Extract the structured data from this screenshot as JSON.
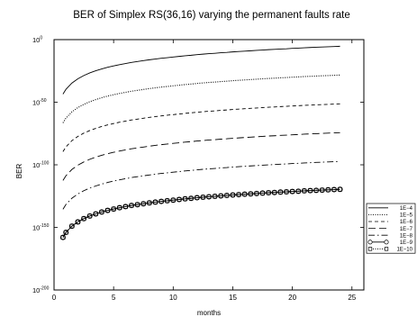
{
  "chart_data": {
    "type": "line",
    "title": "BER of Simplex RS(36,16) varying the permanent faults rate",
    "xlabel": "months",
    "ylabel": "BER",
    "xlim": [
      0,
      26
    ],
    "ylim_log10": [
      -200,
      0
    ],
    "yscale": "log",
    "x_ticks": [
      0,
      5,
      10,
      15,
      20,
      25
    ],
    "y_ticks": [
      {
        "base": "10",
        "exp": "-200",
        "log10": -200
      },
      {
        "base": "10",
        "exp": "-150",
        "log10": -150
      },
      {
        "base": "10",
        "exp": "-100",
        "log10": -100
      },
      {
        "base": "10",
        "exp": "-50",
        "log10": -50
      },
      {
        "base": "10",
        "exp": "0",
        "log10": 0
      }
    ],
    "grid": false,
    "legend_position": "right",
    "x": [
      0.75,
      1,
      1.5,
      2,
      2.5,
      3,
      3.5,
      4,
      4.5,
      5,
      5.5,
      6,
      6.5,
      7,
      7.5,
      8,
      8.5,
      9,
      9.5,
      10,
      10.5,
      11,
      11.5,
      12,
      12.5,
      13,
      13.5,
      14,
      14.5,
      15,
      15.5,
      16,
      16.5,
      17,
      17.5,
      18,
      18.5,
      19,
      19.5,
      20,
      20.5,
      21,
      21.5,
      22,
      22.5,
      23,
      23.5,
      24
    ],
    "series": [
      {
        "name": "1E−4",
        "dash": "solid",
        "marker": "none",
        "log10_values": [
          -43.5,
          -39.7,
          -34.7,
          -31.3,
          -28.7,
          -26.6,
          -24.9,
          -23.4,
          -22.1,
          -21.0,
          -20.0,
          -19.1,
          -18.2,
          -17.5,
          -16.8,
          -16.1,
          -15.5,
          -14.9,
          -14.4,
          -13.9,
          -13.4,
          -12.9,
          -12.5,
          -12.0,
          -11.6,
          -11.2,
          -10.9,
          -10.5,
          -10.2,
          -9.8,
          -9.5,
          -9.2,
          -8.9,
          -8.6,
          -8.3,
          -8.0,
          -7.8,
          -7.5,
          -7.3,
          -7.0,
          -6.8,
          -6.5,
          -6.3,
          -6.1,
          -5.9,
          -5.7,
          -5.5,
          -5.3
        ]
      },
      {
        "name": "1E−5",
        "dash": "dotted",
        "marker": "none",
        "log10_values": [
          -66.5,
          -62.7,
          -57.7,
          -54.3,
          -51.7,
          -49.6,
          -47.9,
          -46.4,
          -45.1,
          -44.0,
          -43.0,
          -42.1,
          -41.2,
          -40.5,
          -39.8,
          -39.1,
          -38.5,
          -37.9,
          -37.4,
          -36.9,
          -36.4,
          -35.9,
          -35.5,
          -35.0,
          -34.6,
          -34.2,
          -33.9,
          -33.5,
          -33.2,
          -32.8,
          -32.5,
          -32.2,
          -31.9,
          -31.6,
          -31.3,
          -31.0,
          -30.8,
          -30.5,
          -30.3,
          -30.0,
          -29.8,
          -29.5,
          -29.3,
          -29.1,
          -28.9,
          -28.7,
          -28.5,
          -28.3
        ]
      },
      {
        "name": "1E−6",
        "dash": "short-dash",
        "marker": "none",
        "log10_values": [
          -89.5,
          -85.7,
          -80.7,
          -77.3,
          -74.7,
          -72.6,
          -70.9,
          -69.4,
          -68.1,
          -67.0,
          -66.0,
          -65.1,
          -64.2,
          -63.5,
          -62.8,
          -62.1,
          -61.5,
          -60.9,
          -60.4,
          -59.9,
          -59.4,
          -58.9,
          -58.5,
          -58.0,
          -57.6,
          -57.2,
          -56.9,
          -56.5,
          -56.2,
          -55.8,
          -55.5,
          -55.2,
          -54.9,
          -54.6,
          -54.3,
          -54.0,
          -53.8,
          -53.5,
          -53.3,
          -53.0,
          -52.8,
          -52.5,
          -52.3,
          -52.1,
          -51.9,
          -51.7,
          -51.5,
          -51.3
        ]
      },
      {
        "name": "1E−7",
        "dash": "long-dash",
        "marker": "none",
        "log10_values": [
          -112.5,
          -108.7,
          -103.7,
          -100.3,
          -97.7,
          -95.6,
          -93.9,
          -92.4,
          -91.1,
          -90.0,
          -89.0,
          -88.1,
          -87.2,
          -86.5,
          -85.8,
          -85.1,
          -84.5,
          -83.9,
          -83.4,
          -82.9,
          -82.4,
          -81.9,
          -81.5,
          -81.0,
          -80.6,
          -80.2,
          -79.9,
          -79.5,
          -79.2,
          -78.8,
          -78.5,
          -78.2,
          -77.9,
          -77.6,
          -77.3,
          -77.0,
          -76.8,
          -76.5,
          -76.3,
          -76.0,
          -75.8,
          -75.5,
          -75.3,
          -75.1,
          -74.9,
          -74.7,
          -74.5,
          -74.3
        ]
      },
      {
        "name": "1E−8",
        "dash": "dash-dot",
        "marker": "none",
        "log10_values": [
          -135.5,
          -131.7,
          -126.7,
          -123.3,
          -120.7,
          -118.6,
          -116.9,
          -115.4,
          -114.1,
          -113.0,
          -112.0,
          -111.1,
          -110.2,
          -109.5,
          -108.8,
          -108.1,
          -107.5,
          -106.9,
          -106.4,
          -105.9,
          -105.4,
          -104.9,
          -104.5,
          -104.0,
          -103.6,
          -103.2,
          -102.9,
          -102.5,
          -102.2,
          -101.8,
          -101.5,
          -101.2,
          -100.9,
          -100.6,
          -100.3,
          -100.0,
          -99.8,
          -99.5,
          -99.3,
          -99.0,
          -98.8,
          -98.5,
          -98.3,
          -98.1,
          -97.9,
          -97.7,
          -97.5,
          -97.3
        ]
      },
      {
        "name": "1E−9",
        "dash": "solid",
        "marker": "circle",
        "log10_values": [
          -158.0,
          -154.0,
          -149.0,
          -145.6,
          -143.0,
          -140.9,
          -139.2,
          -137.7,
          -136.4,
          -135.3,
          -134.3,
          -133.4,
          -132.5,
          -131.8,
          -131.1,
          -130.4,
          -129.8,
          -129.2,
          -128.7,
          -128.2,
          -127.7,
          -127.2,
          -126.8,
          -126.3,
          -125.9,
          -125.5,
          -125.2,
          -124.8,
          -124.5,
          -124.1,
          -123.8,
          -123.5,
          -123.2,
          -122.9,
          -122.6,
          -122.3,
          -122.1,
          -121.8,
          -121.6,
          -121.3,
          -121.1,
          -120.8,
          -120.6,
          -120.4,
          -120.2,
          -120.0,
          -119.8,
          -119.6
        ]
      },
      {
        "name": "1E−10",
        "dash": "dotted",
        "marker": "square",
        "log10_values": [
          -158.0,
          -154.0,
          -149.0,
          -145.6,
          -143.0,
          -140.9,
          -139.2,
          -137.7,
          -136.4,
          -135.3,
          -134.3,
          -133.4,
          -132.5,
          -131.8,
          -131.1,
          -130.4,
          -129.8,
          -129.2,
          -128.7,
          -128.2,
          -127.7,
          -127.2,
          -126.8,
          -126.3,
          -125.9,
          -125.5,
          -125.2,
          -124.8,
          -124.5,
          -124.1,
          -123.8,
          -123.5,
          -123.2,
          -122.9,
          -122.6,
          -122.3,
          -122.1,
          -121.8,
          -121.6,
          -121.3,
          -121.1,
          -120.8,
          -120.6,
          -120.4,
          -120.2,
          -120.0,
          -119.8,
          -119.6
        ]
      }
    ]
  }
}
